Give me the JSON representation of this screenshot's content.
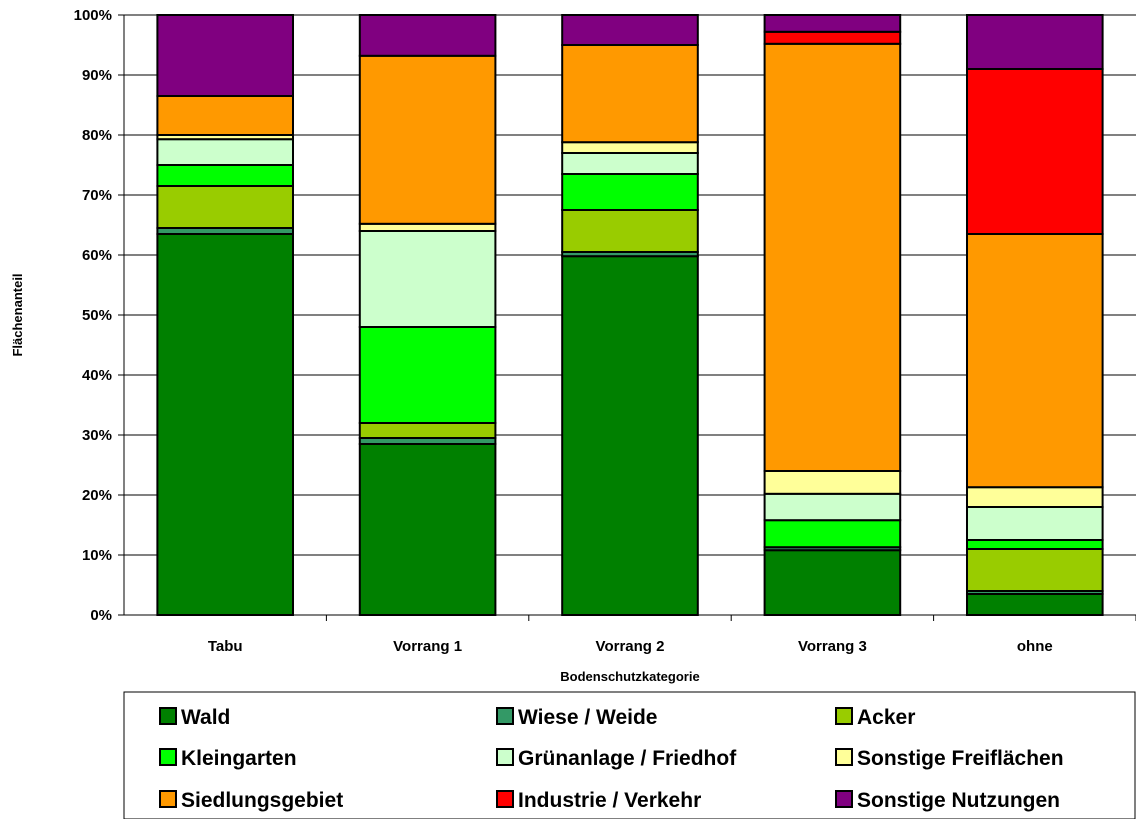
{
  "chart_data": {
    "type": "bar",
    "stacked": "percent",
    "xlabel": "Bodenschutzkategorie",
    "ylabel": "Flächenanteil",
    "ylim": [
      0,
      100
    ],
    "yticks": [
      "0%",
      "10%",
      "20%",
      "30%",
      "40%",
      "50%",
      "60%",
      "70%",
      "80%",
      "90%",
      "100%"
    ],
    "grid": true,
    "legend_position": "bottom",
    "categories": [
      "Tabu",
      "Vorrang 1",
      "Vorrang 2",
      "Vorrang 3",
      "ohne"
    ],
    "series": [
      {
        "name": "Wald",
        "color": "#008000",
        "values": [
          63.5,
          28.5,
          59.8,
          10.8,
          3.5
        ]
      },
      {
        "name": "Wiese / Weide",
        "color": "#339966",
        "values": [
          1.0,
          1.0,
          0.7,
          0.5,
          0.5
        ]
      },
      {
        "name": "Acker",
        "color": "#99CC00",
        "values": [
          7.0,
          2.5,
          7.0,
          0.0,
          7.0
        ]
      },
      {
        "name": "Kleingarten",
        "color": "#00FF00",
        "values": [
          3.5,
          16.0,
          6.0,
          4.5,
          1.5
        ]
      },
      {
        "name": "Grünanlage / Friedhof",
        "color": "#CCFFCC",
        "values": [
          4.3,
          16.0,
          3.5,
          4.4,
          5.5
        ]
      },
      {
        "name": "Sonstige Freiflächen",
        "color": "#FFFF99",
        "values": [
          0.7,
          1.2,
          1.8,
          3.8,
          3.3
        ]
      },
      {
        "name": "Siedlungsgebiet",
        "color": "#FF9900",
        "values": [
          6.5,
          28.0,
          16.2,
          71.2,
          42.2
        ]
      },
      {
        "name": "Industrie / Verkehr",
        "color": "#FF0000",
        "values": [
          0.0,
          0.0,
          0.0,
          2.0,
          27.5
        ]
      },
      {
        "name": "Sonstige Nutzungen",
        "color": "#800080",
        "values": [
          13.5,
          6.8,
          5.0,
          2.8,
          9.0
        ]
      }
    ]
  }
}
